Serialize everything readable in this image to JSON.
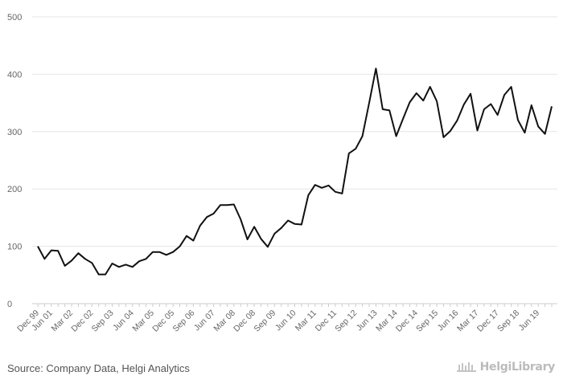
{
  "source_text": "Source: Company Data, Helgi Analytics",
  "brand_name": "HelgiLibrary",
  "colors": {
    "line": "#111111",
    "grid": "#e6e6e6",
    "axis": "#cccccc",
    "tick_text": "#666666"
  },
  "chart_data": {
    "type": "line",
    "title": "",
    "xlabel": "",
    "ylabel": "",
    "ylim": [
      0,
      500
    ],
    "yticks": [
      0,
      100,
      200,
      300,
      400,
      500
    ],
    "grid": true,
    "legend": "none",
    "x_tick_labels": [
      "Dec 99",
      "Jun 01",
      "Mar 02",
      "Dec 02",
      "Sep 03",
      "Jun 04",
      "Mar 05",
      "Dec 05",
      "Sep 06",
      "Jun 07",
      "Mar 08",
      "Dec 08",
      "Sep 09",
      "Jun 10",
      "Mar 11",
      "Dec 11",
      "Sep 12",
      "Jun 13",
      "Mar 14",
      "Dec 14",
      "Sep 15",
      "Jun 16",
      "Mar 17",
      "Dec 17",
      "Sep 18",
      "Jun 19"
    ],
    "series": [
      {
        "values": [
          100,
          78,
          93,
          92,
          66,
          75,
          88,
          78,
          71,
          51,
          51,
          70,
          64,
          68,
          64,
          74,
          78,
          90,
          90,
          85,
          90,
          100,
          118,
          110,
          136,
          151,
          157,
          172,
          172,
          173,
          147,
          112,
          134,
          113,
          99,
          122,
          132,
          145,
          139,
          138,
          189,
          207,
          202,
          206,
          195,
          192,
          262,
          270,
          292,
          350,
          410,
          339,
          337,
          292,
          322,
          351,
          367,
          354,
          378,
          353,
          290,
          301,
          319,
          347,
          366,
          302,
          339,
          348,
          329,
          364,
          378,
          320,
          298,
          346,
          309,
          296,
          344
        ]
      }
    ]
  }
}
